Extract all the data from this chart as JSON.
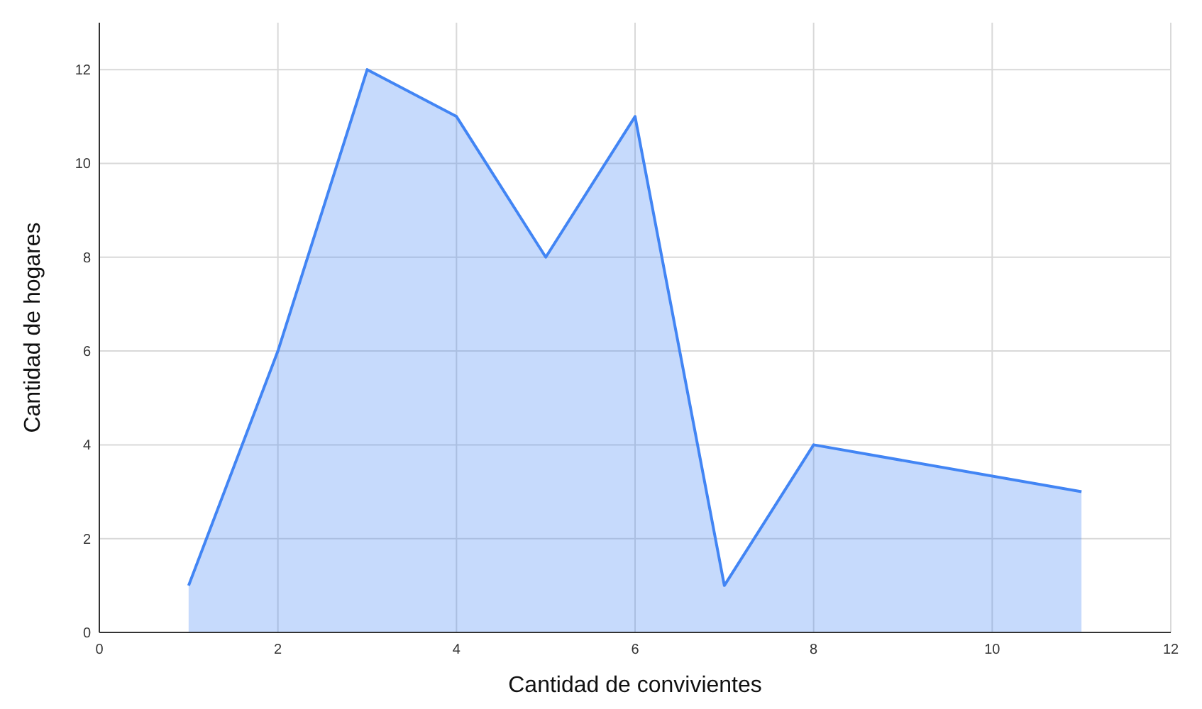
{
  "chart_data": {
    "type": "area",
    "xlabel": "Cantidad de convivientes",
    "ylabel": "Cantidad de hogares",
    "x": [
      1,
      2,
      3,
      4,
      5,
      6,
      7,
      8,
      11
    ],
    "series": [
      {
        "color": "#4285f4",
        "values": [
          1,
          6,
          12,
          11,
          8,
          11,
          1,
          4,
          3
        ]
      }
    ],
    "xlim": [
      0,
      12
    ],
    "xticks": [
      0,
      2,
      4,
      6,
      8,
      10,
      12
    ],
    "ylim": [
      0,
      13
    ],
    "yticks": [
      0,
      2,
      4,
      6,
      8,
      10,
      12
    ],
    "grid": true,
    "marker": "none"
  }
}
